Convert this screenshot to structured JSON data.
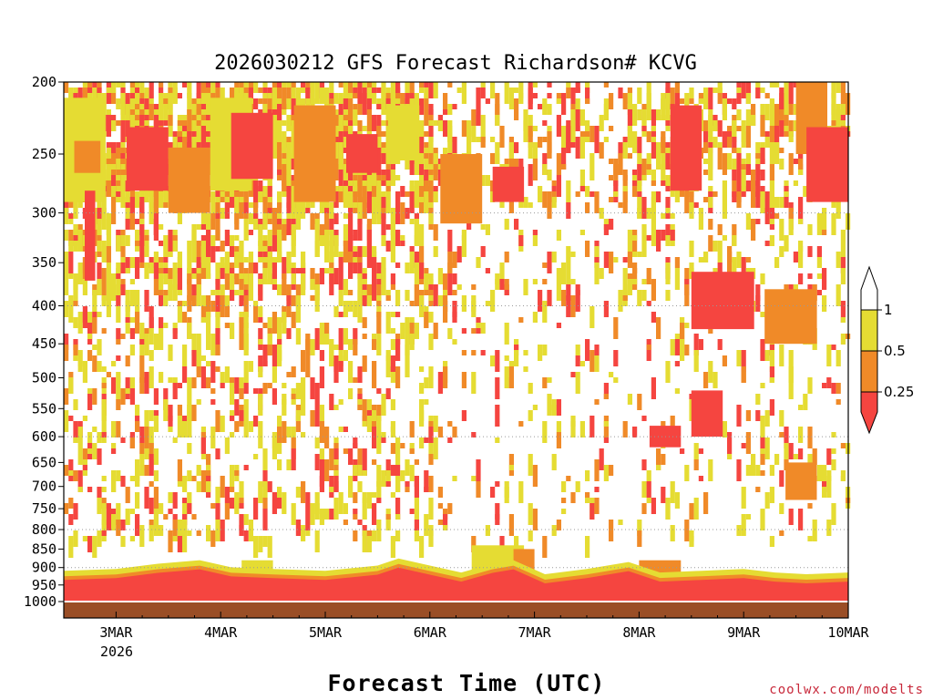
{
  "chart_data": {
    "type": "heatmap",
    "title": "2026030212 GFS Forecast Richardson# KCVG",
    "xlabel": "Forecast Time (UTC)",
    "credit": "coolwx.com/modelts",
    "x_ticks": [
      {
        "label": "3MAR",
        "day": 3
      },
      {
        "label": "4MAR",
        "day": 4
      },
      {
        "label": "5MAR",
        "day": 5
      },
      {
        "label": "6MAR",
        "day": 6
      },
      {
        "label": "7MAR",
        "day": 7
      },
      {
        "label": "8MAR",
        "day": 8
      },
      {
        "label": "9MAR",
        "day": 9
      },
      {
        "label": "10MAR",
        "day": 10
      }
    ],
    "x_year_label": "2026",
    "x_range_days": [
      2.5,
      10.0
    ],
    "y_axis": {
      "unit": "hPa",
      "scale": "log",
      "range": [
        200,
        1000
      ],
      "ticks": [
        200,
        250,
        300,
        350,
        400,
        450,
        500,
        550,
        600,
        650,
        700,
        750,
        800,
        850,
        900,
        950,
        1000
      ],
      "tick_labels": [
        "200",
        "250",
        "300",
        "350",
        "400",
        "450",
        "500",
        "550",
        "600",
        "650",
        "700",
        "750",
        "800",
        "850",
        "900",
        "950",
        "1000"
      ]
    },
    "gridlines": [
      300,
      400,
      600,
      800,
      900,
      1000
    ],
    "legend": {
      "labels": [
        "1",
        "0.5",
        "0.25"
      ],
      "bins": [
        {
          "range": ">1",
          "color": "#ffffff"
        },
        {
          "range": "0.5-1",
          "color": "#e5dc33"
        },
        {
          "range": "0.25-0.5",
          "color": "#f08a28"
        },
        {
          "range": "<0.25",
          "color": "#f54540"
        }
      ]
    },
    "colors": {
      "yellow": "#e5dc33",
      "orange": "#f08a28",
      "red": "#f54540",
      "ground": "#9a4e26"
    },
    "surface_pressure_hPa": 1000,
    "boundary_layer_top_hPa": [
      [
        2.5,
        935
      ],
      [
        3.0,
        930
      ],
      [
        3.4,
        915
      ],
      [
        3.8,
        905
      ],
      [
        4.1,
        925
      ],
      [
        4.5,
        930
      ],
      [
        5.0,
        935
      ],
      [
        5.5,
        920
      ],
      [
        5.7,
        900
      ],
      [
        6.0,
        920
      ],
      [
        6.3,
        940
      ],
      [
        6.6,
        915
      ],
      [
        6.8,
        905
      ],
      [
        7.1,
        945
      ],
      [
        7.5,
        930
      ],
      [
        7.9,
        910
      ],
      [
        8.2,
        940
      ],
      [
        8.6,
        935
      ],
      [
        9.0,
        930
      ],
      [
        9.3,
        940
      ],
      [
        9.6,
        945
      ],
      [
        10.0,
        940
      ]
    ],
    "patches": [
      {
        "day": 2.5,
        "day_end": 2.9,
        "p_top": 210,
        "p_bot": 290,
        "cls": "y"
      },
      {
        "day": 2.6,
        "day_end": 2.85,
        "p_top": 240,
        "p_bot": 265,
        "cls": "o"
      },
      {
        "day": 2.7,
        "day_end": 2.8,
        "p_top": 280,
        "p_bot": 370,
        "cls": "r"
      },
      {
        "day": 3.1,
        "day_end": 3.5,
        "p_top": 230,
        "p_bot": 280,
        "cls": "r"
      },
      {
        "day": 3.5,
        "day_end": 3.9,
        "p_top": 245,
        "p_bot": 300,
        "cls": "o"
      },
      {
        "day": 3.9,
        "day_end": 4.3,
        "p_top": 210,
        "p_bot": 280,
        "cls": "y"
      },
      {
        "day": 4.1,
        "day_end": 4.5,
        "p_top": 220,
        "p_bot": 270,
        "cls": "r"
      },
      {
        "day": 4.7,
        "day_end": 5.1,
        "p_top": 215,
        "p_bot": 290,
        "cls": "o"
      },
      {
        "day": 5.2,
        "day_end": 5.5,
        "p_top": 235,
        "p_bot": 265,
        "cls": "r"
      },
      {
        "day": 5.6,
        "day_end": 5.9,
        "p_top": 215,
        "p_bot": 255,
        "cls": "y"
      },
      {
        "day": 6.1,
        "day_end": 6.5,
        "p_top": 250,
        "p_bot": 310,
        "cls": "o"
      },
      {
        "day": 6.6,
        "day_end": 6.9,
        "p_top": 260,
        "p_bot": 290,
        "cls": "r"
      },
      {
        "day": 8.3,
        "day_end": 8.6,
        "p_top": 215,
        "p_bot": 280,
        "cls": "r"
      },
      {
        "day": 8.5,
        "day_end": 9.1,
        "p_top": 360,
        "p_bot": 430,
        "cls": "r"
      },
      {
        "day": 9.5,
        "day_end": 9.8,
        "p_top": 200,
        "p_bot": 250,
        "cls": "o"
      },
      {
        "day": 9.6,
        "day_end": 10.0,
        "p_top": 230,
        "p_bot": 290,
        "cls": "r"
      },
      {
        "day": 9.2,
        "day_end": 9.7,
        "p_top": 380,
        "p_bot": 450,
        "cls": "o"
      },
      {
        "day": 8.1,
        "day_end": 8.4,
        "p_top": 580,
        "p_bot": 620,
        "cls": "r"
      },
      {
        "day": 8.5,
        "day_end": 8.8,
        "p_top": 520,
        "p_bot": 600,
        "cls": "r"
      },
      {
        "day": 9.4,
        "day_end": 9.7,
        "p_top": 650,
        "p_bot": 730,
        "cls": "o"
      },
      {
        "day": 4.2,
        "day_end": 4.5,
        "p_top": 880,
        "p_bot": 940,
        "cls": "y"
      },
      {
        "day": 6.4,
        "day_end": 6.9,
        "p_top": 840,
        "p_bot": 910,
        "cls": "y"
      },
      {
        "day": 6.8,
        "day_end": 7.0,
        "p_top": 850,
        "p_bot": 920,
        "cls": "o"
      },
      {
        "day": 8.0,
        "day_end": 8.4,
        "p_top": 880,
        "p_bot": 920,
        "cls": "o"
      }
    ]
  }
}
